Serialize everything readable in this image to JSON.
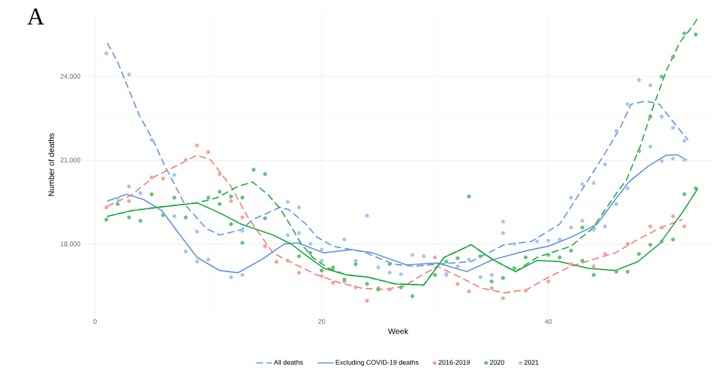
{
  "chart_data": {
    "type": "line",
    "title": "A",
    "xlabel": "Week",
    "ylabel": "Number of deaths",
    "xlim": [
      -1,
      54.5
    ],
    "ylim": [
      15430,
      26260
    ],
    "xticks": [
      0,
      20,
      40
    ],
    "yticks": [
      {
        "value": 18000,
        "label": "18,000"
      },
      {
        "value": 21000,
        "label": "21,000"
      },
      {
        "value": 24000,
        "label": "24,000"
      }
    ],
    "grid": true,
    "legend": "bottom",
    "series": [
      {
        "name": "All deaths",
        "line_style": "dashed",
        "color": "#5b8fe6",
        "x": [
          1.1,
          2,
          3.9,
          5.1,
          6.1,
          7.9,
          9.8,
          11,
          12.9,
          13.9,
          16.3,
          17.1,
          18.6,
          19.6,
          21,
          22.6,
          23.7,
          26.3,
          28.2,
          30.2,
          33.2,
          36.1,
          38.5,
          41,
          42.9,
          44.9,
          46.3,
          47.3,
          48.6,
          49.8,
          51.2,
          52.3
        ],
        "values": [
          25190,
          24520,
          22620,
          21740,
          20860,
          19440,
          18570,
          18330,
          18520,
          18880,
          19320,
          19240,
          18720,
          18250,
          17930,
          17810,
          17730,
          17290,
          17210,
          17290,
          17380,
          17980,
          18100,
          18720,
          19910,
          21190,
          22140,
          23010,
          23130,
          23010,
          22290,
          21740
        ]
      },
      {
        "name": "Excluding COVID-19 deaths",
        "line_style": "solid",
        "color": "#5b8fe6",
        "x": [
          1.1,
          2.8,
          4.3,
          5.9,
          7.5,
          9,
          11,
          12.6,
          14.7,
          16.7,
          17.9,
          20.2,
          22.6,
          24.5,
          27.5,
          30.2,
          32.8,
          35.1,
          38.1,
          40,
          42,
          44.3,
          45.9,
          47.1,
          48.8,
          50.4,
          51.4,
          52.2
        ],
        "values": [
          19550,
          19790,
          19600,
          19200,
          18330,
          17530,
          17060,
          16980,
          17450,
          18010,
          18050,
          17690,
          17810,
          17690,
          17260,
          17330,
          17020,
          17450,
          17770,
          17930,
          18250,
          18720,
          19600,
          20230,
          20790,
          21190,
          21200,
          21020
        ]
      },
      {
        "name": "2016-2019",
        "type": "scatter",
        "marker": "circle",
        "color": "#f4a39c",
        "x": [
          1,
          3,
          5,
          6,
          8,
          9,
          10,
          11,
          12,
          13,
          15,
          16,
          17,
          18,
          20,
          21,
          22,
          23,
          24,
          25,
          26,
          30,
          31,
          32,
          33,
          35,
          36,
          38,
          40,
          42,
          44,
          45,
          47,
          49,
          50,
          51,
          52
        ],
        "values": [
          19320,
          19550,
          20390,
          20350,
          21020,
          21540,
          21300,
          20510,
          19550,
          18960,
          17930,
          17370,
          17410,
          16980,
          16860,
          16620,
          16670,
          16460,
          15980,
          16430,
          16380,
          17530,
          16900,
          16580,
          16310,
          16430,
          16070,
          16340,
          16670,
          17290,
          17210,
          17650,
          18010,
          18640,
          18600,
          19000,
          18640
        ]
      },
      {
        "name": "2020",
        "type": "scatter",
        "marker": "circle",
        "color": "#5fc27a",
        "x": [
          1,
          2,
          3,
          4,
          5,
          6,
          7,
          8,
          10,
          11,
          11,
          12,
          13,
          12,
          13,
          14,
          15,
          15,
          18,
          19,
          20,
          21,
          22,
          23,
          24,
          25,
          26,
          27,
          28,
          30,
          31,
          32,
          33,
          34,
          35,
          36,
          37,
          38,
          40,
          41,
          42,
          43,
          43,
          44,
          44,
          46,
          47,
          48,
          48,
          49,
          49,
          50,
          50,
          51,
          51,
          52,
          52,
          53,
          53
        ],
        "values": [
          18880,
          19440,
          18960,
          18840,
          19790,
          19040,
          19670,
          18960,
          19670,
          19880,
          19440,
          19710,
          19670,
          18720,
          18050,
          20670,
          20510,
          18930,
          17570,
          17690,
          17060,
          17170,
          16740,
          17290,
          16580,
          16380,
          17290,
          16460,
          16140,
          16900,
          17380,
          17500,
          19710,
          17570,
          16670,
          16790,
          17140,
          17530,
          17620,
          17530,
          17770,
          17410,
          18600,
          16900,
          18570,
          17020,
          17020,
          17650,
          21340,
          17980,
          22570,
          24000,
          18100,
          24710,
          18170,
          25550,
          19790,
          25510,
          20000
        ]
      },
      {
        "name": "2021",
        "type": "scatter",
        "marker": "circle",
        "color": "#a9c3f2",
        "x": [
          1,
          2,
          3,
          3,
          4,
          5,
          7,
          7,
          9,
          8,
          9,
          10,
          12,
          13,
          13,
          17,
          18,
          17,
          18,
          19,
          20,
          20,
          22,
          24,
          23,
          25,
          26,
          27,
          28,
          29,
          31,
          32,
          33,
          34,
          35,
          36,
          36,
          37,
          39,
          40,
          41,
          42,
          42,
          43,
          43,
          44,
          44,
          45,
          45,
          46,
          46,
          47,
          47,
          48,
          49,
          49,
          50,
          50,
          51,
          51,
          52,
          52
        ],
        "values": [
          24830,
          19640,
          24080,
          20070,
          19830,
          21740,
          20480,
          19000,
          18450,
          17740,
          17380,
          17450,
          16820,
          16900,
          18480,
          19520,
          19320,
          18330,
          18400,
          18010,
          17810,
          17410,
          18170,
          19020,
          17410,
          17170,
          16980,
          16930,
          17620,
          17570,
          16940,
          17210,
          17450,
          16820,
          16900,
          18810,
          18400,
          18010,
          18100,
          18130,
          18170,
          19670,
          18600,
          20150,
          18840,
          20190,
          18520,
          20860,
          18640,
          22050,
          19440,
          23010,
          20000,
          23880,
          23690,
          21500,
          22570,
          20980,
          22170,
          21070,
          21700,
          21020
        ]
      },
      {
        "line_style": "dashed",
        "color": "#f07a70",
        "x": [
          1.1,
          3.2,
          5.1,
          7.1,
          9,
          10.2,
          12,
          13.5,
          15.7,
          17.6,
          19.6,
          21.6,
          23.5,
          25.5,
          27.3,
          28.2,
          30.2,
          32.2,
          34.1,
          36.1,
          38.1,
          40,
          42,
          43.9,
          45.9,
          47.9,
          49.8,
          51.8
        ],
        "values": [
          19360,
          19760,
          20390,
          20790,
          21190,
          21020,
          20070,
          18960,
          17690,
          17290,
          16900,
          16620,
          16430,
          16380,
          16500,
          16740,
          17210,
          16820,
          16430,
          16260,
          16380,
          16820,
          17210,
          17450,
          17690,
          18170,
          18570,
          18880
        ]
      },
      {
        "line_style": "dashed",
        "color": "#1aa83c",
        "x": [
          1.1,
          3.2,
          5.5,
          8.1,
          9,
          10.8,
          12.6,
          13.9,
          15.3,
          16.3,
          17.3,
          18.2,
          19.2,
          20.6,
          22.2,
          24.1,
          26.5,
          29,
          30.8,
          33.2,
          35.1,
          37.1,
          39,
          42,
          43.9,
          45.9,
          46.9,
          48.1,
          49.2,
          50.4,
          51.6,
          52.7,
          53.2
        ],
        "values": [
          19000,
          19200,
          19320,
          19440,
          19480,
          19670,
          20070,
          20230,
          19760,
          19290,
          18640,
          18010,
          17530,
          17140,
          16900,
          16820,
          16580,
          16540,
          17530,
          17980,
          17450,
          17020,
          17530,
          17930,
          18570,
          19760,
          20310,
          21500,
          22860,
          24200,
          25230,
          25790,
          26100
        ]
      },
      {
        "line_style": "solid",
        "color": "#1aa83c",
        "x": [
          1.1,
          3.2,
          5.5,
          8.1,
          9,
          11,
          12.9,
          15.7,
          17.3,
          18.6,
          20.2,
          22.2,
          24.1,
          26.5,
          29,
          30.8,
          33.2,
          35.1,
          37.1,
          39,
          41,
          43.5,
          45.9,
          47.9,
          49.8,
          51.8,
          53.2
        ],
        "values": [
          19000,
          19200,
          19320,
          19440,
          19480,
          19120,
          18720,
          18330,
          18010,
          17610,
          17140,
          16900,
          16820,
          16580,
          16540,
          17530,
          17980,
          17450,
          17020,
          17420,
          17380,
          17140,
          17060,
          17380,
          18010,
          19120,
          20000
        ]
      }
    ]
  }
}
